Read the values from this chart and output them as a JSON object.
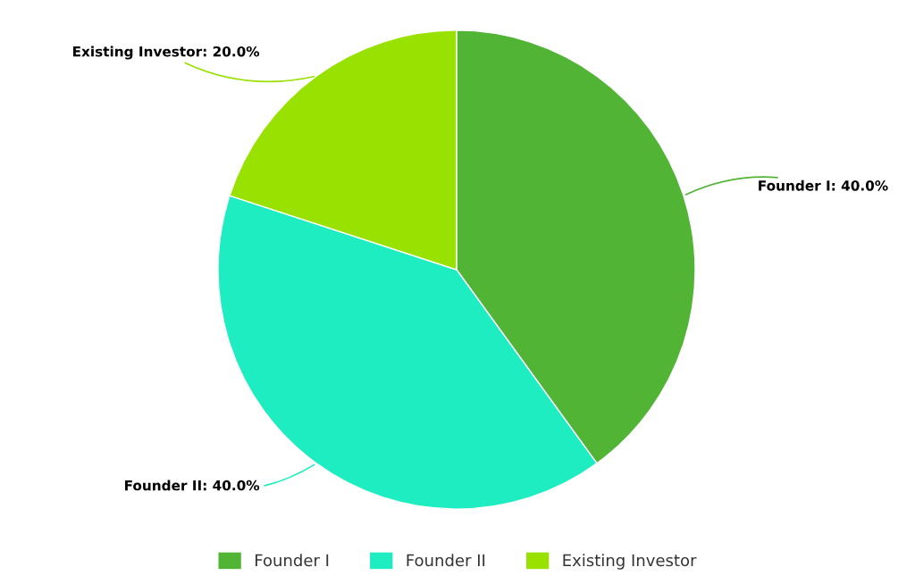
{
  "chart_data": {
    "type": "pie",
    "categories": [
      "Founder I",
      "Founder II",
      "Existing Investor"
    ],
    "values": [
      40,
      40,
      20
    ],
    "colors": [
      "#52b435",
      "#1dedc0",
      "#99e100"
    ],
    "value_labels": [
      "Founder I: 40.0%",
      "Founder II: 40.0%",
      "Existing Investor: 20.0%"
    ],
    "legend": "bottom"
  }
}
